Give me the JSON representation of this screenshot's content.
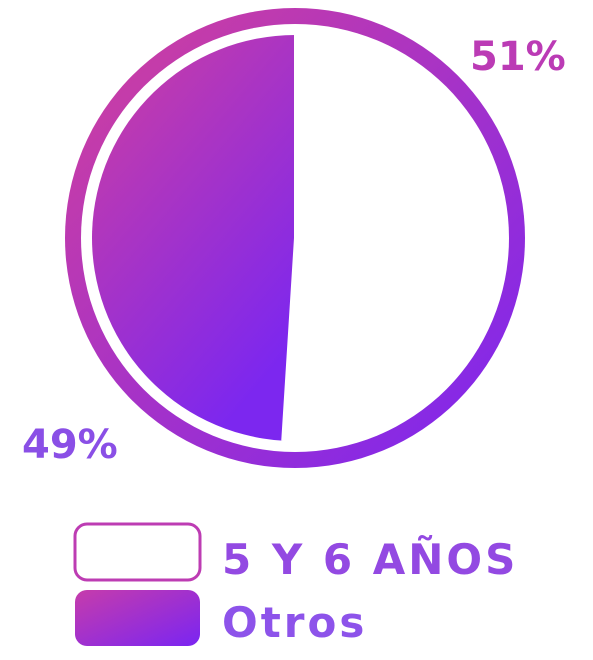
{
  "chart_data": {
    "type": "pie",
    "slices": [
      {
        "label": "5 Y 6 AÑOS",
        "value": 51,
        "display": "51%",
        "color": "#ffffff"
      },
      {
        "label": "Otros",
        "value": 49,
        "display": "49%",
        "color": "#9b35d6"
      }
    ],
    "legend_position": "bottom",
    "colors": {
      "gradient_start": "#d2409c",
      "gradient_end": "#7a25f2",
      "text_top": "#b93bb4",
      "text_bottom": "#8b4fe8"
    }
  }
}
